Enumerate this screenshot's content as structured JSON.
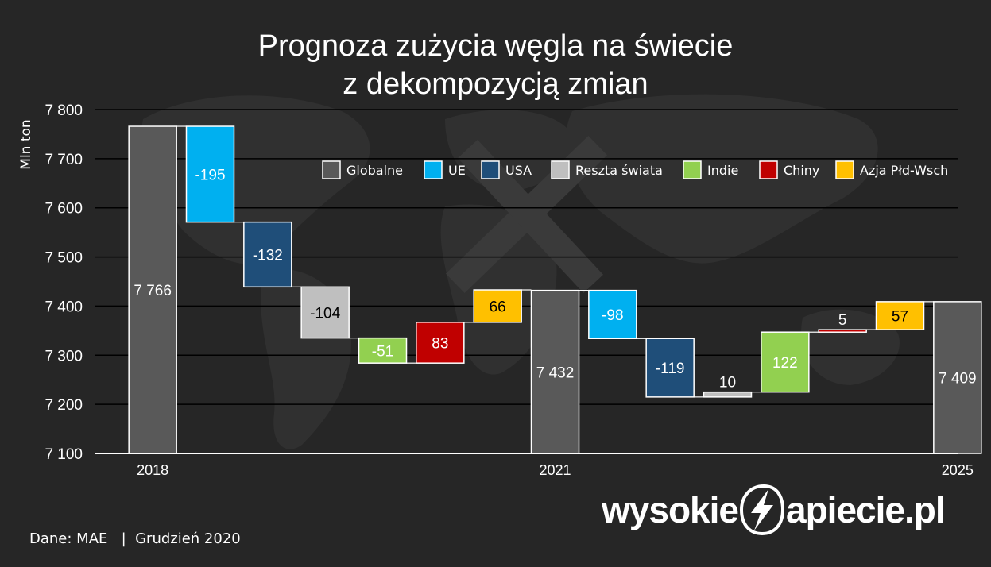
{
  "chart_data": {
    "type": "waterfall",
    "title_line1": "Prognoza zużycia węgla na świecie",
    "title_line2": "z dekompozycją zmian",
    "ylabel": "Mln ton",
    "ylim": [
      7100,
      7800
    ],
    "yticks": [
      "7 100",
      "7 200",
      "7 300",
      "7 400",
      "7 500",
      "7 600",
      "7 700",
      "7 800"
    ],
    "ytick_values": [
      7100,
      7200,
      7300,
      7400,
      7500,
      7600,
      7700,
      7800
    ],
    "x_labels": [
      "2018",
      "2021",
      "2025"
    ],
    "legend": [
      {
        "name": "Globalne",
        "color": "#595959"
      },
      {
        "name": "UE",
        "color": "#00b0f0"
      },
      {
        "name": "USA",
        "color": "#1f4e79"
      },
      {
        "name": "Reszta świata",
        "color": "#bfbfbf"
      },
      {
        "name": "Indie",
        "color": "#92d050"
      },
      {
        "name": "Chiny",
        "color": "#c00000"
      },
      {
        "name": "Azja Płd-Wsch",
        "color": "#ffc000"
      }
    ],
    "bars": [
      {
        "series": "Globalne",
        "start": 7100,
        "end": 7766,
        "label": "7 766"
      },
      {
        "series": "UE",
        "start": 7766,
        "end": 7571,
        "label": "-195"
      },
      {
        "series": "USA",
        "start": 7571,
        "end": 7439,
        "label": "-132"
      },
      {
        "series": "Reszta świata",
        "start": 7439,
        "end": 7335,
        "label": "-104"
      },
      {
        "series": "Indie",
        "start": 7335,
        "end": 7284,
        "label": "-51"
      },
      {
        "series": "Chiny",
        "start": 7284,
        "end": 7367,
        "label": "83"
      },
      {
        "series": "Azja Płd-Wsch",
        "start": 7367,
        "end": 7433,
        "label": "66"
      },
      {
        "series": "Globalne",
        "start": 7100,
        "end": 7432,
        "label": "7 432"
      },
      {
        "series": "UE",
        "start": 7432,
        "end": 7334,
        "label": "-98"
      },
      {
        "series": "USA",
        "start": 7334,
        "end": 7215,
        "label": "-119"
      },
      {
        "series": "Reszta świata",
        "start": 7215,
        "end": 7225,
        "label": "10"
      },
      {
        "series": "Indie",
        "start": 7225,
        "end": 7347,
        "label": "122"
      },
      {
        "series": "Chiny",
        "start": 7347,
        "end": 7352,
        "label": "5"
      },
      {
        "series": "Azja Płd-Wsch",
        "start": 7352,
        "end": 7409,
        "label": "57"
      },
      {
        "series": "Globalne",
        "start": 7100,
        "end": 7409,
        "label": "7 409"
      }
    ]
  },
  "footer": {
    "source": "Dane: MAE",
    "separator": "|",
    "date": "Grudzień 2020"
  },
  "brand": {
    "left": "wysokie",
    "right": "apiecie.pl"
  }
}
